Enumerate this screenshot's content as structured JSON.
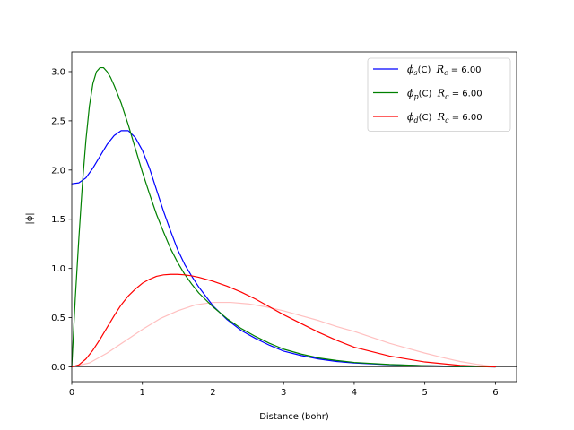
{
  "chart_data": {
    "type": "line",
    "xlabel": "Distance (bohr)",
    "ylabel": "|ϕ|",
    "xlim": [
      0,
      6.3
    ],
    "ylim": [
      -0.15,
      3.2
    ],
    "xticks": [
      "0",
      "1",
      "2",
      "3",
      "4",
      "5",
      "6"
    ],
    "yticks": [
      "0.0",
      "0.5",
      "1.0",
      "1.5",
      "2.0",
      "2.5",
      "3.0"
    ],
    "grid": false,
    "legend_position": "top-right",
    "zero_line": true,
    "series": [
      {
        "name": "ϕs(C)  Rc = 6.00",
        "legend": {
          "phi": "ϕ",
          "sub": "s",
          "atom": "(C)",
          "rc": "R",
          "rcsub": "c",
          "value": " = 6.00"
        },
        "color": "#0000ff",
        "x": [
          0,
          0.1,
          0.2,
          0.3,
          0.4,
          0.5,
          0.6,
          0.7,
          0.8,
          0.9,
          1.0,
          1.1,
          1.2,
          1.3,
          1.4,
          1.5,
          1.6,
          1.7,
          1.8,
          2.0,
          2.2,
          2.4,
          2.6,
          2.8,
          3.0,
          3.25,
          3.5,
          3.75,
          4.0,
          4.5,
          5.0,
          5.5,
          6.0
        ],
        "y": [
          1.86,
          1.87,
          1.92,
          2.02,
          2.14,
          2.26,
          2.35,
          2.4,
          2.4,
          2.33,
          2.2,
          2.02,
          1.8,
          1.58,
          1.38,
          1.19,
          1.04,
          0.92,
          0.81,
          0.62,
          0.48,
          0.37,
          0.29,
          0.22,
          0.16,
          0.115,
          0.08,
          0.055,
          0.04,
          0.022,
          0.012,
          0.005,
          0.0
        ]
      },
      {
        "name": "ϕp(C)  Rc = 6.00",
        "legend": {
          "phi": "ϕ",
          "sub": "p",
          "atom": "(C)",
          "rc": "R",
          "rcsub": "c",
          "value": " = 6.00"
        },
        "color": "#008000",
        "x": [
          0,
          0.05,
          0.1,
          0.15,
          0.2,
          0.25,
          0.3,
          0.35,
          0.4,
          0.45,
          0.5,
          0.55,
          0.6,
          0.7,
          0.8,
          0.9,
          1.0,
          1.1,
          1.2,
          1.3,
          1.4,
          1.5,
          1.6,
          1.7,
          1.8,
          2.0,
          2.2,
          2.4,
          2.6,
          2.8,
          3.0,
          3.25,
          3.5,
          3.75,
          4.0,
          4.5,
          5.0,
          5.5,
          6.0
        ],
        "y": [
          0.0,
          0.7,
          1.3,
          1.85,
          2.3,
          2.65,
          2.88,
          3.0,
          3.04,
          3.04,
          3.0,
          2.94,
          2.86,
          2.68,
          2.46,
          2.22,
          1.98,
          1.76,
          1.55,
          1.37,
          1.2,
          1.06,
          0.94,
          0.84,
          0.75,
          0.61,
          0.49,
          0.39,
          0.31,
          0.24,
          0.18,
          0.13,
          0.09,
          0.065,
          0.045,
          0.024,
          0.012,
          0.005,
          0.0
        ]
      },
      {
        "name": "ϕd(C)  Rc = 6.00",
        "legend": {
          "phi": "ϕ",
          "sub": "d",
          "atom": "(C)",
          "rc": "R",
          "rcsub": "c",
          "value": " = 6.00"
        },
        "color": "#ff0000",
        "x": [
          0,
          0.1,
          0.2,
          0.3,
          0.4,
          0.5,
          0.6,
          0.7,
          0.8,
          0.9,
          1.0,
          1.1,
          1.2,
          1.3,
          1.4,
          1.5,
          1.6,
          1.7,
          1.8,
          2.0,
          2.2,
          2.4,
          2.6,
          2.8,
          3.0,
          3.25,
          3.5,
          3.75,
          4.0,
          4.5,
          5.0,
          5.5,
          6.0
        ],
        "y": [
          0.0,
          0.02,
          0.08,
          0.17,
          0.28,
          0.4,
          0.52,
          0.63,
          0.72,
          0.79,
          0.85,
          0.89,
          0.92,
          0.935,
          0.94,
          0.94,
          0.935,
          0.925,
          0.91,
          0.87,
          0.82,
          0.76,
          0.69,
          0.61,
          0.53,
          0.44,
          0.35,
          0.27,
          0.2,
          0.11,
          0.05,
          0.015,
          0.0
        ]
      },
      {
        "color": "#ffc0c0",
        "x": [
          0,
          0.25,
          0.5,
          0.75,
          1.0,
          1.25,
          1.5,
          1.75,
          2.0,
          2.25,
          2.5,
          2.75,
          3.0,
          3.25,
          3.5,
          3.75,
          4.0,
          4.25,
          4.5,
          4.75,
          5.0,
          5.25,
          5.5,
          5.75,
          6.0
        ],
        "y": [
          0.0,
          0.04,
          0.14,
          0.26,
          0.38,
          0.49,
          0.57,
          0.63,
          0.655,
          0.655,
          0.64,
          0.61,
          0.57,
          0.52,
          0.47,
          0.41,
          0.36,
          0.3,
          0.24,
          0.19,
          0.14,
          0.095,
          0.055,
          0.025,
          0.0
        ]
      }
    ]
  }
}
